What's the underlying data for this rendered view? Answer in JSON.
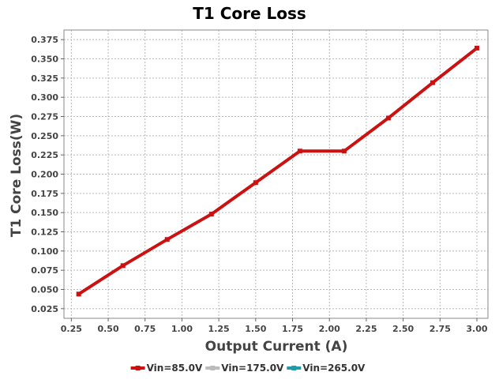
{
  "chart_data": {
    "type": "line",
    "title": "T1 Core Loss",
    "xlabel": "Output Current (A)",
    "ylabel": "T1 Core Loss(W)",
    "xlim": [
      0.2,
      3.075
    ],
    "ylim": [
      0.0125,
      0.3875
    ],
    "x_ticks": [
      "0.25",
      "0.50",
      "0.75",
      "1.00",
      "1.25",
      "1.50",
      "1.75",
      "2.00",
      "2.25",
      "2.50",
      "2.75",
      "3.00"
    ],
    "x_tick_values": [
      0.25,
      0.5,
      0.75,
      1.0,
      1.25,
      1.5,
      1.75,
      2.0,
      2.25,
      2.5,
      2.75,
      3.0
    ],
    "y_ticks": [
      "0.025",
      "0.050",
      "0.075",
      "0.100",
      "0.125",
      "0.150",
      "0.175",
      "0.200",
      "0.225",
      "0.250",
      "0.275",
      "0.300",
      "0.325",
      "0.350",
      "0.375"
    ],
    "y_tick_values": [
      0.025,
      0.05,
      0.075,
      0.1,
      0.125,
      0.15,
      0.175,
      0.2,
      0.225,
      0.25,
      0.275,
      0.3,
      0.325,
      0.35,
      0.375
    ],
    "grid": true,
    "legend_position": "bottom",
    "series": [
      {
        "name": "Vin=85.0V",
        "color": "#cc1111",
        "x": [
          0.3,
          0.6,
          0.9,
          1.2,
          1.5,
          1.8,
          2.1,
          2.4,
          2.7,
          3.0
        ],
        "y": [
          0.044,
          0.081,
          0.115,
          0.148,
          0.189,
          0.23,
          0.23,
          0.273,
          0.319,
          0.364
        ]
      },
      {
        "name": "Vin=175.0V",
        "color": "#bbbbbb",
        "x": [],
        "y": []
      },
      {
        "name": "Vin=265.0V",
        "color": "#1f9aa8",
        "x": [],
        "y": []
      }
    ]
  }
}
